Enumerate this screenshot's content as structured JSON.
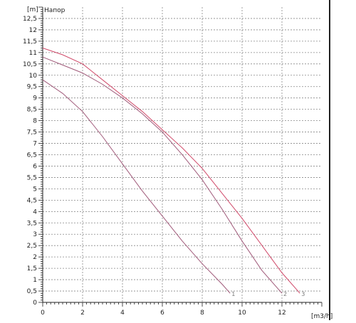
{
  "chart_data": {
    "type": "line",
    "title": "Напор",
    "y_unit_label": "[m]",
    "x_unit_label": "[m3/h]",
    "xlim": [
      0,
      14
    ],
    "ylim": [
      0,
      13
    ],
    "grid": true,
    "x_ticks": [
      "0",
      "2",
      "4",
      "6",
      "8",
      "10",
      "12"
    ],
    "y_ticks": [
      "0",
      "0,5",
      "1",
      "1,5",
      "2",
      "2,5",
      "3",
      "3,5",
      "4",
      "4,5",
      "5",
      "5,5",
      "6",
      "6,5",
      "7",
      "7,5",
      "8",
      "8,5",
      "9",
      "9,5",
      "10",
      "10,5",
      "11",
      "11,5",
      "12",
      "12,5"
    ],
    "series": [
      {
        "name": "1",
        "color": "#a05a7a",
        "x": [
          0,
          1,
          2,
          3,
          4,
          5,
          6,
          7,
          8,
          9,
          9.4
        ],
        "y": [
          9.8,
          9.2,
          8.4,
          7.3,
          6.1,
          4.9,
          3.8,
          2.7,
          1.7,
          0.8,
          0.4
        ]
      },
      {
        "name": "2",
        "color": "#a05a7a",
        "x": [
          0,
          1,
          2,
          3,
          4,
          5,
          6,
          7,
          8,
          9,
          10,
          11,
          12
        ],
        "y": [
          10.8,
          10.45,
          10.1,
          9.6,
          9.0,
          8.3,
          7.5,
          6.5,
          5.4,
          4.1,
          2.7,
          1.4,
          0.4
        ]
      },
      {
        "name": "3",
        "color": "#d04a6a",
        "x": [
          0,
          1,
          2,
          3,
          4,
          5,
          6,
          7,
          8,
          9,
          10,
          11,
          12,
          12.9
        ],
        "y": [
          11.2,
          10.9,
          10.5,
          9.8,
          9.1,
          8.4,
          7.6,
          6.8,
          5.9,
          4.8,
          3.7,
          2.5,
          1.3,
          0.4
        ]
      }
    ]
  }
}
